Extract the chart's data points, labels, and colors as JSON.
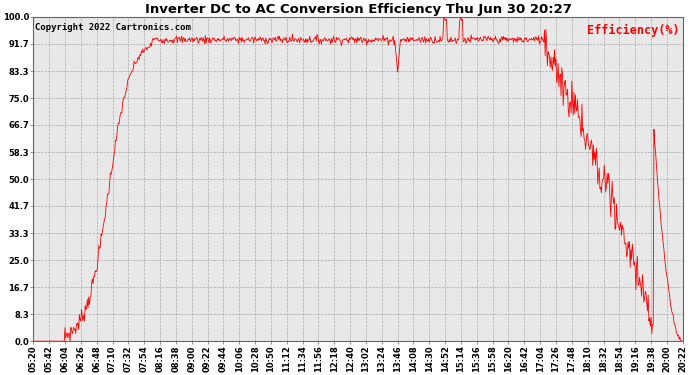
{
  "title": "Inverter DC to AC Conversion Efficiency Thu Jun 30 20:27",
  "copyright": "Copyright 2022 Cartronics.com",
  "legend_label": "Efficiency(%)",
  "line_color": "#ff0000",
  "background_color": "#ffffff",
  "plot_bg_color": "#e8e8e8",
  "grid_color": "#aaaaaa",
  "title_fontsize": 9.5,
  "copyright_fontsize": 6.5,
  "legend_fontsize": 8.5,
  "tick_fontsize": 6,
  "ytick_labels": [
    "0.0",
    "8.3",
    "16.7",
    "25.0",
    "33.3",
    "41.7",
    "50.0",
    "58.3",
    "66.7",
    "75.0",
    "83.3",
    "91.7",
    "100.0"
  ],
  "ytick_values": [
    0.0,
    8.3,
    16.7,
    25.0,
    33.3,
    41.7,
    50.0,
    58.3,
    66.7,
    75.0,
    83.3,
    91.7,
    100.0
  ],
  "ylim": [
    0.0,
    100.0
  ],
  "xtick_labels": [
    "05:20",
    "05:42",
    "06:04",
    "06:26",
    "06:48",
    "07:10",
    "07:32",
    "07:54",
    "08:16",
    "08:38",
    "09:00",
    "09:22",
    "09:44",
    "10:06",
    "10:28",
    "10:50",
    "11:12",
    "11:34",
    "11:56",
    "12:18",
    "12:40",
    "13:02",
    "13:24",
    "13:46",
    "14:08",
    "14:30",
    "14:52",
    "15:14",
    "15:36",
    "15:58",
    "16:20",
    "16:42",
    "17:04",
    "17:26",
    "17:48",
    "18:10",
    "18:32",
    "18:54",
    "19:16",
    "19:38",
    "20:00",
    "20:22"
  ]
}
